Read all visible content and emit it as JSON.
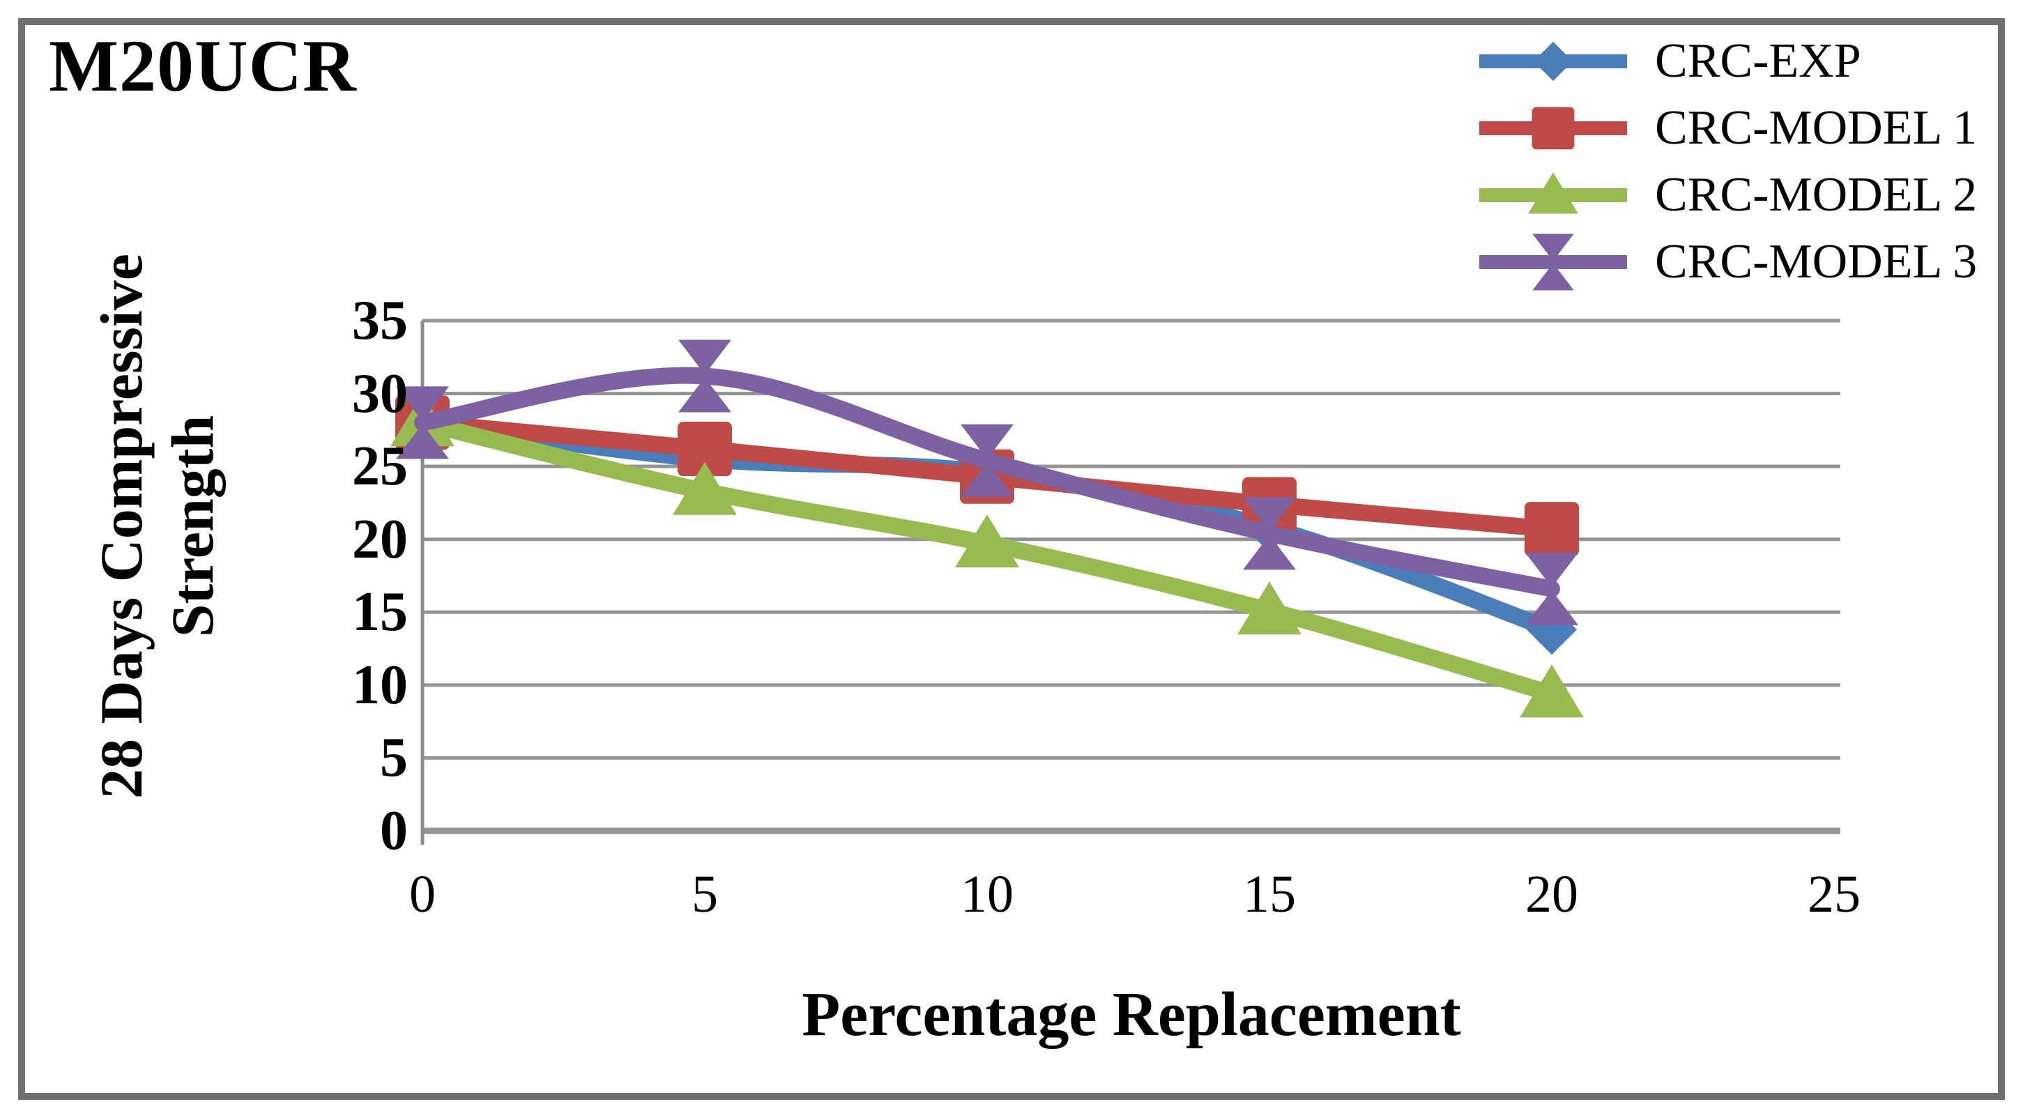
{
  "figure": {
    "background": "#ffffff",
    "border_color": "#6f6f6f"
  },
  "chart_data": {
    "type": "line",
    "title": "M20UCR",
    "xlabel": "Percentage Replacement",
    "ylabel_lines": [
      "28 Days Compressive",
      "Strength"
    ],
    "x": [
      0,
      5,
      10,
      15,
      20
    ],
    "xlim": [
      0,
      25
    ],
    "ylim": [
      0,
      35
    ],
    "xticks": [
      0,
      5,
      10,
      15,
      20,
      25
    ],
    "yticks": [
      35,
      30,
      25,
      20,
      15,
      10,
      5,
      0
    ],
    "grid": "horizontal-only",
    "gridline_color": "#949494",
    "axis_color": "#8c8c8c",
    "text_color": "#000000",
    "legend_position": "top-right",
    "series": [
      {
        "name": "CRC-EXP",
        "color": "#4A7EBB",
        "marker": "diamond",
        "values": [
          28,
          25.5,
          24.6,
          20.8,
          13.8
        ]
      },
      {
        "name": "CRC-MODEL 1",
        "color": "#BE4B48",
        "marker": "square",
        "values": [
          28,
          26.2,
          24.3,
          22.4,
          20.7
        ]
      },
      {
        "name": "CRC-MODEL 2",
        "color": "#97BB4F",
        "marker": "triangle",
        "values": [
          28,
          23.3,
          19.7,
          15.1,
          9.4
        ]
      },
      {
        "name": "CRC-MODEL 3",
        "color": "#7D61A3",
        "marker": "x",
        "values": [
          28,
          31.2,
          25.4,
          20.4,
          16.6
        ]
      }
    ]
  }
}
